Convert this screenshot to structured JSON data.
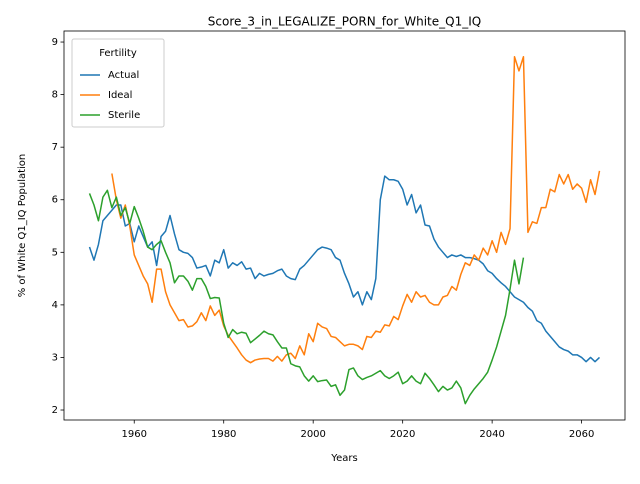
{
  "chart_data": {
    "type": "line",
    "title": "Score_3_in_LEGALIZE_PORN_for_White_Q1_IQ",
    "x_label": "Years",
    "y_label": "% of White Q1_IQ Population",
    "legend_title": "Fertility",
    "legend_loc": "upper left",
    "x": [
      1950,
      1951,
      1952,
      1953,
      1954,
      1955,
      1956,
      1957,
      1958,
      1959,
      1960,
      1961,
      1962,
      1963,
      1964,
      1965,
      1966,
      1967,
      1968,
      1969,
      1970,
      1971,
      1972,
      1973,
      1974,
      1975,
      1976,
      1977,
      1978,
      1979,
      1980,
      1981,
      1982,
      1983,
      1984,
      1985,
      1986,
      1987,
      1988,
      1989,
      1990,
      1991,
      1992,
      1993,
      1994,
      1995,
      1996,
      1997,
      1998,
      1999,
      2000,
      2001,
      2002,
      2003,
      2004,
      2005,
      2006,
      2007,
      2008,
      2009,
      2010,
      2011,
      2012,
      2013,
      2014,
      2015,
      2016,
      2017,
      2018,
      2019,
      2020,
      2021,
      2022,
      2023,
      2024,
      2025,
      2026,
      2027,
      2028,
      2029,
      2030,
      2031,
      2032,
      2033,
      2034,
      2035,
      2036,
      2037,
      2038,
      2039,
      2040,
      2041,
      2042,
      2043,
      2044,
      2045,
      2046,
      2047,
      2048,
      2049,
      2050,
      2051,
      2052,
      2053,
      2054,
      2055,
      2056,
      2057,
      2058,
      2059,
      2060,
      2061,
      2062,
      2063,
      2064
    ],
    "xlim": [
      1944.3,
      2069.7
    ],
    "xticks": [
      1960,
      1980,
      2000,
      2020,
      2040,
      2060
    ],
    "ylim": [
      1.81,
      9.21
    ],
    "yticks": [
      2,
      3,
      4,
      5,
      6,
      7,
      8,
      9
    ],
    "grid": false,
    "series": [
      {
        "name": "Actual",
        "color": "#1f77b4",
        "values": [
          5.1,
          4.85,
          5.15,
          5.6,
          5.7,
          5.8,
          5.9,
          5.9,
          5.5,
          5.55,
          5.2,
          5.5,
          5.3,
          5.1,
          5.2,
          4.75,
          5.3,
          5.4,
          5.7,
          5.35,
          5.05,
          5.0,
          4.98,
          4.9,
          4.7,
          4.72,
          4.75,
          4.55,
          4.85,
          4.8,
          5.05,
          4.7,
          4.8,
          4.75,
          4.82,
          4.68,
          4.7,
          4.5,
          4.6,
          4.55,
          4.58,
          4.6,
          4.65,
          4.68,
          4.55,
          4.5,
          4.48,
          4.68,
          4.75,
          4.85,
          4.95,
          5.05,
          5.1,
          5.08,
          5.05,
          4.9,
          4.85,
          4.6,
          4.4,
          4.15,
          4.25,
          4.0,
          4.25,
          4.1,
          4.5,
          6.0,
          6.45,
          6.38,
          6.38,
          6.35,
          6.2,
          5.9,
          6.1,
          5.75,
          5.9,
          5.52,
          5.5,
          5.25,
          5.1,
          5.0,
          4.9,
          4.95,
          4.92,
          4.95,
          4.9,
          4.9,
          4.88,
          4.85,
          4.78,
          4.65,
          4.6,
          4.5,
          4.42,
          4.35,
          4.25,
          4.15,
          4.1,
          4.05,
          3.95,
          3.88,
          3.7,
          3.65,
          3.5,
          3.4,
          3.3,
          3.2,
          3.15,
          3.12,
          3.05,
          3.05,
          3.0,
          2.92,
          3.0,
          2.92,
          3.0
        ]
      },
      {
        "name": "Ideal",
        "color": "#ff7f0e",
        "values": [
          null,
          null,
          null,
          null,
          null,
          6.5,
          6.0,
          5.65,
          5.9,
          5.5,
          4.95,
          4.75,
          4.55,
          4.4,
          4.05,
          4.68,
          4.68,
          4.25,
          4.0,
          3.85,
          3.7,
          3.72,
          3.58,
          3.6,
          3.68,
          3.85,
          3.7,
          3.98,
          3.8,
          3.9,
          3.6,
          3.42,
          3.3,
          3.18,
          3.05,
          2.95,
          2.9,
          2.95,
          2.97,
          2.98,
          2.98,
          2.93,
          3.02,
          2.93,
          3.05,
          3.08,
          2.98,
          3.22,
          3.05,
          3.45,
          3.3,
          3.65,
          3.58,
          3.55,
          3.4,
          3.38,
          3.3,
          3.22,
          3.25,
          3.25,
          3.22,
          3.15,
          3.4,
          3.38,
          3.5,
          3.48,
          3.62,
          3.6,
          3.78,
          3.72,
          3.98,
          4.2,
          4.05,
          4.25,
          4.15,
          4.18,
          4.05,
          4.0,
          4.0,
          4.15,
          4.18,
          4.35,
          4.28,
          4.58,
          4.8,
          4.75,
          4.95,
          4.85,
          5.08,
          4.95,
          5.22,
          5.0,
          5.38,
          5.15,
          5.45,
          8.72,
          8.45,
          8.72,
          5.38,
          5.58,
          5.55,
          5.85,
          5.85,
          6.2,
          6.15,
          6.48,
          6.3,
          6.48,
          6.2,
          6.3,
          6.22,
          5.95,
          6.38,
          6.1,
          6.55
        ]
      },
      {
        "name": "Sterile",
        "color": "#2ca02c",
        "values": [
          6.12,
          5.9,
          5.6,
          6.05,
          6.18,
          5.85,
          6.05,
          5.7,
          5.85,
          5.55,
          5.87,
          5.65,
          5.4,
          5.1,
          5.05,
          5.15,
          5.22,
          5.0,
          4.8,
          4.42,
          4.55,
          4.55,
          4.45,
          4.28,
          4.5,
          4.5,
          4.35,
          4.12,
          4.14,
          4.13,
          3.65,
          3.38,
          3.53,
          3.45,
          3.48,
          3.46,
          3.28,
          3.35,
          3.42,
          3.5,
          3.45,
          3.43,
          3.3,
          3.18,
          3.18,
          2.88,
          2.84,
          2.82,
          2.65,
          2.55,
          2.65,
          2.54,
          2.56,
          2.57,
          2.45,
          2.48,
          2.28,
          2.38,
          2.77,
          2.8,
          2.65,
          2.58,
          2.62,
          2.65,
          2.7,
          2.75,
          2.65,
          2.6,
          2.65,
          2.72,
          2.5,
          2.55,
          2.65,
          2.55,
          2.5,
          2.7,
          2.6,
          2.48,
          2.35,
          2.45,
          2.38,
          2.42,
          2.55,
          2.42,
          2.12,
          2.28,
          2.4,
          2.5,
          2.6,
          2.72,
          2.95,
          3.2,
          3.5,
          3.8,
          4.3,
          4.85,
          4.4,
          4.9,
          null,
          null,
          null,
          null,
          null,
          null,
          null,
          null,
          null,
          null,
          null,
          null,
          null,
          null,
          null,
          null,
          null
        ]
      }
    ]
  }
}
